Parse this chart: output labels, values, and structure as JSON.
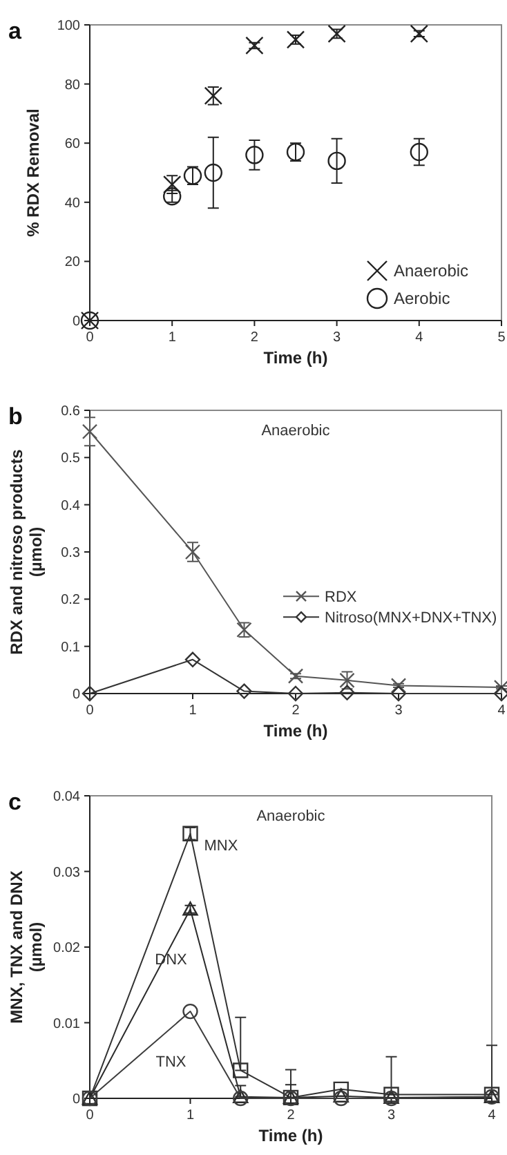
{
  "chart_data": [
    {
      "type": "scatter",
      "annotations": [
        "a"
      ],
      "xlabel": "Time (h)",
      "ylabel": "% RDX Removal",
      "xlim": [
        0,
        5
      ],
      "xticks": [
        0,
        1,
        2,
        3,
        4,
        5
      ],
      "ylim": [
        0,
        100
      ],
      "yticks": [
        0,
        20,
        40,
        60,
        80,
        100
      ],
      "legend": "bottom right",
      "grid": false,
      "series": [
        {
          "name": "Anaerobic",
          "color": "#222222",
          "marker": "cross",
          "x": [
            0,
            1,
            1.5,
            2,
            2.5,
            3,
            4
          ],
          "values": [
            0,
            46,
            76,
            93,
            95,
            97,
            97
          ],
          "errors": [
            null,
            3,
            3,
            1,
            1.5,
            1.5,
            1
          ]
        },
        {
          "name": "Aerobic",
          "color": "#222222",
          "marker": "circle",
          "x": [
            0,
            1,
            1.25,
            1.5,
            2,
            2.5,
            3,
            4
          ],
          "values": [
            0,
            42,
            49,
            50,
            56,
            57,
            54,
            57
          ],
          "errors": [
            null,
            2,
            3,
            12,
            5,
            3,
            7.5,
            4.5
          ]
        }
      ]
    },
    {
      "type": "line",
      "annotations": [
        "b",
        "Anaerobic"
      ],
      "xlabel": "Time (h)",
      "ylabel": "RDX and nitroso products (µmol)",
      "xlim": [
        0,
        4
      ],
      "xticks": [
        0,
        1,
        2,
        3,
        4
      ],
      "ylim": [
        0,
        0.6
      ],
      "yticks": [
        0,
        0.1,
        0.2,
        0.3,
        0.4,
        0.5,
        0.6
      ],
      "legend": "right",
      "grid": false,
      "line_style": "solid",
      "series": [
        {
          "name": "RDX",
          "color": "#555555",
          "marker": "cross",
          "x": [
            0,
            1,
            1.5,
            2,
            2.5,
            3,
            4
          ],
          "values": [
            0.555,
            0.3,
            0.135,
            0.037,
            0.028,
            0.017,
            0.013
          ],
          "errors": [
            0.03,
            0.02,
            0.015,
            0.005,
            0.018,
            0.004,
            0.003
          ]
        },
        {
          "name": "Nitroso(MNX+DNX+TNX)",
          "color": "#333333",
          "marker": "diamond",
          "x": [
            0,
            1,
            1.5,
            2,
            2.5,
            3,
            4
          ],
          "values": [
            0,
            0.072,
            0.005,
            0,
            0.002,
            0,
            0
          ]
        }
      ]
    },
    {
      "type": "line",
      "annotations": [
        "c",
        "Anaerobic"
      ],
      "xlabel": "Time (h)",
      "ylabel": "MNX, TNX and DNX (µmol)",
      "xlim": [
        0,
        4
      ],
      "xticks": [
        0,
        1,
        2,
        3,
        4
      ],
      "ylim": [
        0,
        0.04
      ],
      "yticks": [
        0,
        0.01,
        0.02,
        0.03,
        0.04
      ],
      "legend": false,
      "grid": false,
      "line_style": "solid",
      "series": [
        {
          "name": "MNX",
          "color": "#333333",
          "marker": "square",
          "x": [
            0,
            1,
            1.5,
            2,
            2.5,
            3,
            4
          ],
          "values": [
            0,
            0.035,
            0.0037,
            0.0001,
            0.0012,
            0.0005,
            0.0005
          ],
          "errors": [
            null,
            [
              0.0342,
              0.0358
            ],
            [
              0.0037,
              0.0107
            ],
            [
              0.0001,
              0.0038
            ],
            null,
            [
              0.0005,
              0.0055
            ],
            [
              0.0005,
              0.007
            ]
          ]
        },
        {
          "name": "DNX",
          "color": "#2a2a2a",
          "marker": "triangle",
          "x": [
            0,
            1,
            1.5,
            2,
            2.5,
            3,
            4
          ],
          "values": [
            0,
            0.025,
            0.0002,
            0.0001,
            0.0003,
            0.0001,
            0.0002
          ],
          "errors": [
            null,
            [
              0.0245,
              0.0255
            ],
            [
              0.0002,
              0.0017
            ],
            [
              0.0001,
              0.0018
            ],
            null,
            null,
            null
          ]
        },
        {
          "name": "TNX",
          "color": "#3d3d3d",
          "marker": "circle",
          "x": [
            0,
            1,
            1.5,
            2,
            2.5,
            3,
            4
          ],
          "values": [
            0,
            0.0115,
            0,
            0,
            0,
            0,
            0.0002
          ]
        }
      ]
    }
  ]
}
